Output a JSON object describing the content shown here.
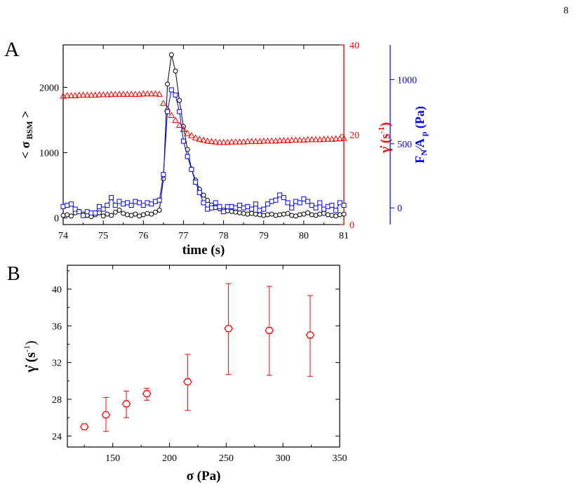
{
  "page": {
    "number": "8"
  },
  "chart_data": [
    {
      "panel_label": "A",
      "type": "line",
      "xlabel": "time (s)",
      "xlim": [
        74,
        81
      ],
      "x_ticks": [
        74,
        75,
        76,
        77,
        78,
        79,
        80,
        81
      ],
      "axes": {
        "left": {
          "label": "< σ BSM >",
          "label_main": "< σ",
          "label_sub": "BSM",
          "label_end": " >",
          "ylim": [
            -100,
            2650
          ],
          "ticks": [
            0,
            1000,
            2000
          ],
          "color": "#000000"
        },
        "right1": {
          "label": "γ̇ (s-1)",
          "label_main": "γ̇ (s",
          "label_sup": "-1",
          "label_end": ")",
          "ylim": [
            0,
            40
          ],
          "ticks": [
            0,
            20,
            40
          ],
          "color": "#ff0000"
        },
        "right2": {
          "label": "FN/Ap (Pa)",
          "label_f": "F",
          "label_n": "N",
          "label_a": "A",
          "label_p": "p",
          "label_end": " (Pa)",
          "ylim": [
            -130,
            1270
          ],
          "ticks": [
            0,
            500,
            1000
          ],
          "color": "#0000ff"
        }
      },
      "grid": false,
      "series": [
        {
          "axis": "left",
          "marker": "circle",
          "color": "#000000",
          "x": [
            74.0,
            74.1,
            74.2,
            74.3,
            74.4,
            74.5,
            74.6,
            74.7,
            74.8,
            74.9,
            75.0,
            75.1,
            75.2,
            75.3,
            75.4,
            75.5,
            75.6,
            75.7,
            75.8,
            75.9,
            76.0,
            76.1,
            76.2,
            76.3,
            76.4,
            76.5,
            76.6,
            76.7,
            76.8,
            76.9,
            77.0,
            77.1,
            77.2,
            77.3,
            77.4,
            77.5,
            77.6,
            77.7,
            77.8,
            77.9,
            78.0,
            78.1,
            78.2,
            78.3,
            78.4,
            78.5,
            78.6,
            78.7,
            78.8,
            78.9,
            79.0,
            79.1,
            79.2,
            79.3,
            79.4,
            79.5,
            79.6,
            79.7,
            79.8,
            79.9,
            80.0,
            80.1,
            80.2,
            80.3,
            80.4,
            80.5,
            80.6,
            80.7,
            80.8,
            80.9,
            81.0
          ],
          "y": [
            40,
            50,
            30,
            80,
            100,
            60,
            40,
            20,
            50,
            80,
            30,
            60,
            40,
            90,
            120,
            70,
            50,
            40,
            60,
            30,
            50,
            70,
            60,
            90,
            120,
            600,
            2050,
            2500,
            2250,
            1800,
            1400,
            1050,
            750,
            580,
            440,
            350,
            270,
            200,
            160,
            140,
            120,
            110,
            100,
            90,
            80,
            70,
            60,
            70,
            60,
            50,
            40,
            50,
            60,
            40,
            50,
            60,
            70,
            40,
            30,
            50,
            60,
            80,
            50,
            40,
            60,
            70,
            50,
            40,
            30,
            50,
            60
          ]
        },
        {
          "axis": "right1",
          "marker": "triangle",
          "color": "#ff0000",
          "x": [
            74.0,
            74.1,
            74.2,
            74.3,
            74.4,
            74.5,
            74.6,
            74.7,
            74.8,
            74.9,
            75.0,
            75.1,
            75.2,
            75.3,
            75.4,
            75.5,
            75.6,
            75.7,
            75.8,
            75.9,
            76.0,
            76.1,
            76.2,
            76.3,
            76.4,
            76.5,
            76.6,
            76.7,
            76.8,
            76.9,
            77.0,
            77.1,
            77.2,
            77.3,
            77.4,
            77.5,
            77.6,
            77.7,
            77.8,
            77.9,
            78.0,
            78.1,
            78.2,
            78.3,
            78.4,
            78.5,
            78.6,
            78.7,
            78.8,
            78.9,
            79.0,
            79.1,
            79.2,
            79.3,
            79.4,
            79.5,
            79.6,
            79.7,
            79.8,
            79.9,
            80.0,
            80.1,
            80.2,
            80.3,
            80.4,
            80.5,
            80.6,
            80.7,
            80.8,
            80.9,
            81.0
          ],
          "y": [
            28.6,
            28.7,
            28.7,
            28.7,
            28.8,
            28.8,
            28.8,
            28.8,
            28.8,
            28.9,
            28.9,
            28.9,
            29.0,
            29.0,
            29.0,
            29.0,
            29.0,
            29.0,
            29.0,
            29.0,
            29.1,
            29.1,
            29.1,
            29.1,
            29.0,
            27.0,
            25.7,
            24.3,
            23.2,
            22.1,
            21.2,
            20.3,
            19.8,
            19.3,
            19.0,
            18.8,
            18.6,
            18.5,
            18.4,
            18.3,
            18.3,
            18.3,
            18.4,
            18.4,
            18.4,
            18.4,
            18.5,
            18.5,
            18.5,
            18.5,
            18.6,
            18.6,
            18.6,
            18.6,
            18.7,
            18.7,
            18.7,
            18.8,
            18.8,
            18.8,
            18.8,
            18.9,
            18.9,
            18.9,
            18.9,
            19.0,
            19.0,
            19.0,
            19.1,
            19.1,
            19.2
          ]
        },
        {
          "axis": "right2",
          "marker": "square",
          "color": "#0000ff",
          "x": [
            74.0,
            74.1,
            74.2,
            74.3,
            74.4,
            74.5,
            74.6,
            74.7,
            74.8,
            74.9,
            75.0,
            75.1,
            75.2,
            75.3,
            75.4,
            75.5,
            75.6,
            75.7,
            75.8,
            75.9,
            76.0,
            76.1,
            76.2,
            76.3,
            76.4,
            76.5,
            76.6,
            76.7,
            76.8,
            76.9,
            77.0,
            77.1,
            77.2,
            77.3,
            77.4,
            77.5,
            77.6,
            77.7,
            77.8,
            77.9,
            78.0,
            78.1,
            78.2,
            78.3,
            78.4,
            78.5,
            78.6,
            78.7,
            78.8,
            78.9,
            79.0,
            79.1,
            79.2,
            79.3,
            79.4,
            79.5,
            79.6,
            79.7,
            79.8,
            79.9,
            80.0,
            80.1,
            80.2,
            80.3,
            80.4,
            80.5,
            80.6,
            80.7,
            80.8,
            80.9,
            81.0
          ],
          "y": [
            10,
            20,
            30,
            -10,
            -30,
            -60,
            -30,
            -40,
            -40,
            10,
            -10,
            20,
            80,
            20,
            50,
            30,
            40,
            20,
            50,
            40,
            20,
            40,
            30,
            50,
            60,
            260,
            750,
            920,
            880,
            750,
            520,
            400,
            300,
            200,
            120,
            40,
            -10,
            0,
            40,
            10,
            -30,
            10,
            10,
            0,
            20,
            0,
            10,
            -10,
            30,
            -20,
            -10,
            30,
            50,
            60,
            100,
            80,
            40,
            0,
            50,
            40,
            70,
            50,
            20,
            0,
            40,
            -10,
            10,
            20,
            -20,
            40,
            20
          ]
        }
      ]
    },
    {
      "panel_label": "B",
      "type": "scatter",
      "xlabel": "σ (Pa)",
      "xlabel_main": "σ",
      "xlabel_end": "(Pa)",
      "ylabel": "γ̇ (s-1)",
      "ylabel_main": "γ̇ (s",
      "ylabel_sup": "-1",
      "ylabel_end": ")",
      "xlim": [
        110,
        350
      ],
      "ylim": [
        22.8,
        42.6
      ],
      "x_ticks": [
        150,
        200,
        250,
        300,
        350
      ],
      "y_ticks": [
        24,
        28,
        32,
        36,
        40
      ],
      "grid": false,
      "color": "#ff0000",
      "marker": "hexagon",
      "points": [
        {
          "x": 125,
          "y": 25.0,
          "err_low": 25.0,
          "err_high": 25.0
        },
        {
          "x": 144,
          "y": 26.3,
          "err_low": 24.5,
          "err_high": 28.2
        },
        {
          "x": 162,
          "y": 27.5,
          "err_low": 26.0,
          "err_high": 28.9
        },
        {
          "x": 180,
          "y": 28.6,
          "err_low": 27.9,
          "err_high": 29.2
        },
        {
          "x": 216,
          "y": 29.9,
          "err_low": 26.8,
          "err_high": 32.9
        },
        {
          "x": 252,
          "y": 35.7,
          "err_low": 30.7,
          "err_high": 40.6
        },
        {
          "x": 288,
          "y": 35.5,
          "err_low": 30.6,
          "err_high": 40.3
        },
        {
          "x": 324,
          "y": 35.0,
          "err_low": 30.5,
          "err_high": 39.3
        }
      ]
    }
  ]
}
